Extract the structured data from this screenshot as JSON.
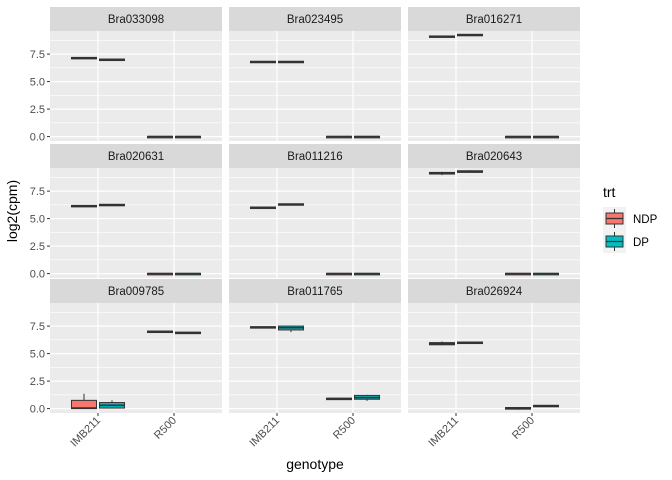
{
  "chart_data": {
    "type": "boxplot",
    "xlabel": "genotype",
    "ylabel": "log2(cpm)",
    "categories": [
      "IMB211",
      "R500"
    ],
    "ylim": [
      -0.4,
      9.6
    ],
    "yticks": [
      0.0,
      2.5,
      5.0,
      7.5
    ],
    "ytick_labels": [
      "0.0",
      "2.5",
      "5.0",
      "7.5"
    ],
    "grid": true,
    "legend": {
      "title": "trt",
      "position": "right",
      "entries": [
        {
          "name": "NDP",
          "color": "#F8766D"
        },
        {
          "name": "DP",
          "color": "#00BFC4"
        }
      ]
    },
    "panels": [
      {
        "title": "Bra033098",
        "boxes": [
          {
            "genotype": "IMB211",
            "trt": "NDP",
            "q1": 7.1,
            "median": 7.15,
            "q3": 7.2,
            "min": 7.1,
            "max": 7.2
          },
          {
            "genotype": "IMB211",
            "trt": "DP",
            "q1": 6.95,
            "median": 7.0,
            "q3": 7.05,
            "min": 6.95,
            "max": 7.05
          },
          {
            "genotype": "R500",
            "trt": "NDP",
            "q1": -0.02,
            "median": 0.0,
            "q3": 0.02,
            "min": -0.02,
            "max": 0.02
          },
          {
            "genotype": "R500",
            "trt": "DP",
            "q1": -0.02,
            "median": 0.0,
            "q3": 0.02,
            "min": -0.02,
            "max": 0.02
          }
        ]
      },
      {
        "title": "Bra023495",
        "boxes": [
          {
            "genotype": "IMB211",
            "trt": "NDP",
            "q1": 6.75,
            "median": 6.8,
            "q3": 6.85,
            "min": 6.75,
            "max": 6.85
          },
          {
            "genotype": "IMB211",
            "trt": "DP",
            "q1": 6.75,
            "median": 6.8,
            "q3": 6.85,
            "min": 6.75,
            "max": 6.85
          },
          {
            "genotype": "R500",
            "trt": "NDP",
            "q1": -0.02,
            "median": 0.0,
            "q3": 0.02,
            "min": -0.02,
            "max": 0.02
          },
          {
            "genotype": "R500",
            "trt": "DP",
            "q1": -0.02,
            "median": 0.0,
            "q3": 0.02,
            "min": -0.02,
            "max": 0.02
          }
        ]
      },
      {
        "title": "Bra016271",
        "boxes": [
          {
            "genotype": "IMB211",
            "trt": "NDP",
            "q1": 9.05,
            "median": 9.1,
            "q3": 9.15,
            "min": 9.05,
            "max": 9.15
          },
          {
            "genotype": "IMB211",
            "trt": "DP",
            "q1": 9.2,
            "median": 9.25,
            "q3": 9.3,
            "min": 9.2,
            "max": 9.3
          },
          {
            "genotype": "R500",
            "trt": "NDP",
            "q1": -0.02,
            "median": 0.0,
            "q3": 0.02,
            "min": -0.02,
            "max": 0.02
          },
          {
            "genotype": "R500",
            "trt": "DP",
            "q1": -0.02,
            "median": 0.0,
            "q3": 0.02,
            "min": -0.02,
            "max": 0.02
          }
        ]
      },
      {
        "title": "Bra020631",
        "boxes": [
          {
            "genotype": "IMB211",
            "trt": "NDP",
            "q1": 6.1,
            "median": 6.15,
            "q3": 6.2,
            "min": 6.1,
            "max": 6.2
          },
          {
            "genotype": "IMB211",
            "trt": "DP",
            "q1": 6.2,
            "median": 6.25,
            "q3": 6.3,
            "min": 6.2,
            "max": 6.3
          },
          {
            "genotype": "R500",
            "trt": "NDP",
            "q1": -0.02,
            "median": 0.0,
            "q3": 0.02,
            "min": -0.02,
            "max": 0.02
          },
          {
            "genotype": "R500",
            "trt": "DP",
            "q1": -0.02,
            "median": 0.0,
            "q3": 0.02,
            "min": -0.02,
            "max": 0.02
          }
        ]
      },
      {
        "title": "Bra011216",
        "boxes": [
          {
            "genotype": "IMB211",
            "trt": "NDP",
            "q1": 5.95,
            "median": 6.0,
            "q3": 6.05,
            "min": 5.95,
            "max": 6.05
          },
          {
            "genotype": "IMB211",
            "trt": "DP",
            "q1": 6.25,
            "median": 6.3,
            "q3": 6.35,
            "min": 6.25,
            "max": 6.35
          },
          {
            "genotype": "R500",
            "trt": "NDP",
            "q1": -0.02,
            "median": 0.0,
            "q3": 0.02,
            "min": -0.02,
            "max": 0.02
          },
          {
            "genotype": "R500",
            "trt": "DP",
            "q1": -0.02,
            "median": 0.0,
            "q3": 0.02,
            "min": -0.02,
            "max": 0.02
          }
        ]
      },
      {
        "title": "Bra020643",
        "boxes": [
          {
            "genotype": "IMB211",
            "trt": "NDP",
            "q1": 9.05,
            "median": 9.15,
            "q3": 9.2,
            "min": 8.95,
            "max": 9.25
          },
          {
            "genotype": "IMB211",
            "trt": "DP",
            "q1": 9.2,
            "median": 9.3,
            "q3": 9.35,
            "min": 9.2,
            "max": 9.4
          },
          {
            "genotype": "R500",
            "trt": "NDP",
            "q1": -0.02,
            "median": 0.0,
            "q3": 0.02,
            "min": -0.02,
            "max": 0.02
          },
          {
            "genotype": "R500",
            "trt": "DP",
            "q1": -0.02,
            "median": 0.0,
            "q3": 0.02,
            "min": -0.02,
            "max": 0.02
          }
        ]
      },
      {
        "title": "Bra009785",
        "boxes": [
          {
            "genotype": "IMB211",
            "trt": "NDP",
            "q1": 0.0,
            "median": 0.05,
            "q3": 0.75,
            "min": 0.0,
            "max": 1.35
          },
          {
            "genotype": "IMB211",
            "trt": "DP",
            "q1": 0.05,
            "median": 0.3,
            "q3": 0.55,
            "min": 0.0,
            "max": 0.75
          },
          {
            "genotype": "R500",
            "trt": "NDP",
            "q1": 6.95,
            "median": 7.0,
            "q3": 7.05,
            "min": 6.95,
            "max": 7.05
          },
          {
            "genotype": "R500",
            "trt": "DP",
            "q1": 6.85,
            "median": 6.9,
            "q3": 6.95,
            "min": 6.85,
            "max": 6.95
          }
        ]
      },
      {
        "title": "Bra011765",
        "boxes": [
          {
            "genotype": "IMB211",
            "trt": "NDP",
            "q1": 7.35,
            "median": 7.4,
            "q3": 7.45,
            "min": 7.35,
            "max": 7.45
          },
          {
            "genotype": "IMB211",
            "trt": "DP",
            "q1": 7.15,
            "median": 7.35,
            "q3": 7.5,
            "min": 6.95,
            "max": 7.55
          },
          {
            "genotype": "R500",
            "trt": "NDP",
            "q1": 0.85,
            "median": 0.9,
            "q3": 0.95,
            "min": 0.85,
            "max": 0.95
          },
          {
            "genotype": "R500",
            "trt": "DP",
            "q1": 0.85,
            "median": 1.0,
            "q3": 1.2,
            "min": 0.7,
            "max": 1.25
          }
        ]
      },
      {
        "title": "Bra026924",
        "boxes": [
          {
            "genotype": "IMB211",
            "trt": "NDP",
            "q1": 5.8,
            "median": 5.9,
            "q3": 6.0,
            "min": 5.75,
            "max": 6.1
          },
          {
            "genotype": "IMB211",
            "trt": "DP",
            "q1": 5.95,
            "median": 6.0,
            "q3": 6.05,
            "min": 5.95,
            "max": 6.05
          },
          {
            "genotype": "R500",
            "trt": "NDP",
            "q1": -0.05,
            "median": 0.0,
            "q3": 0.1,
            "min": -0.1,
            "max": 0.15
          },
          {
            "genotype": "R500",
            "trt": "DP",
            "q1": 0.2,
            "median": 0.25,
            "q3": 0.3,
            "min": 0.2,
            "max": 0.3
          }
        ]
      }
    ]
  }
}
